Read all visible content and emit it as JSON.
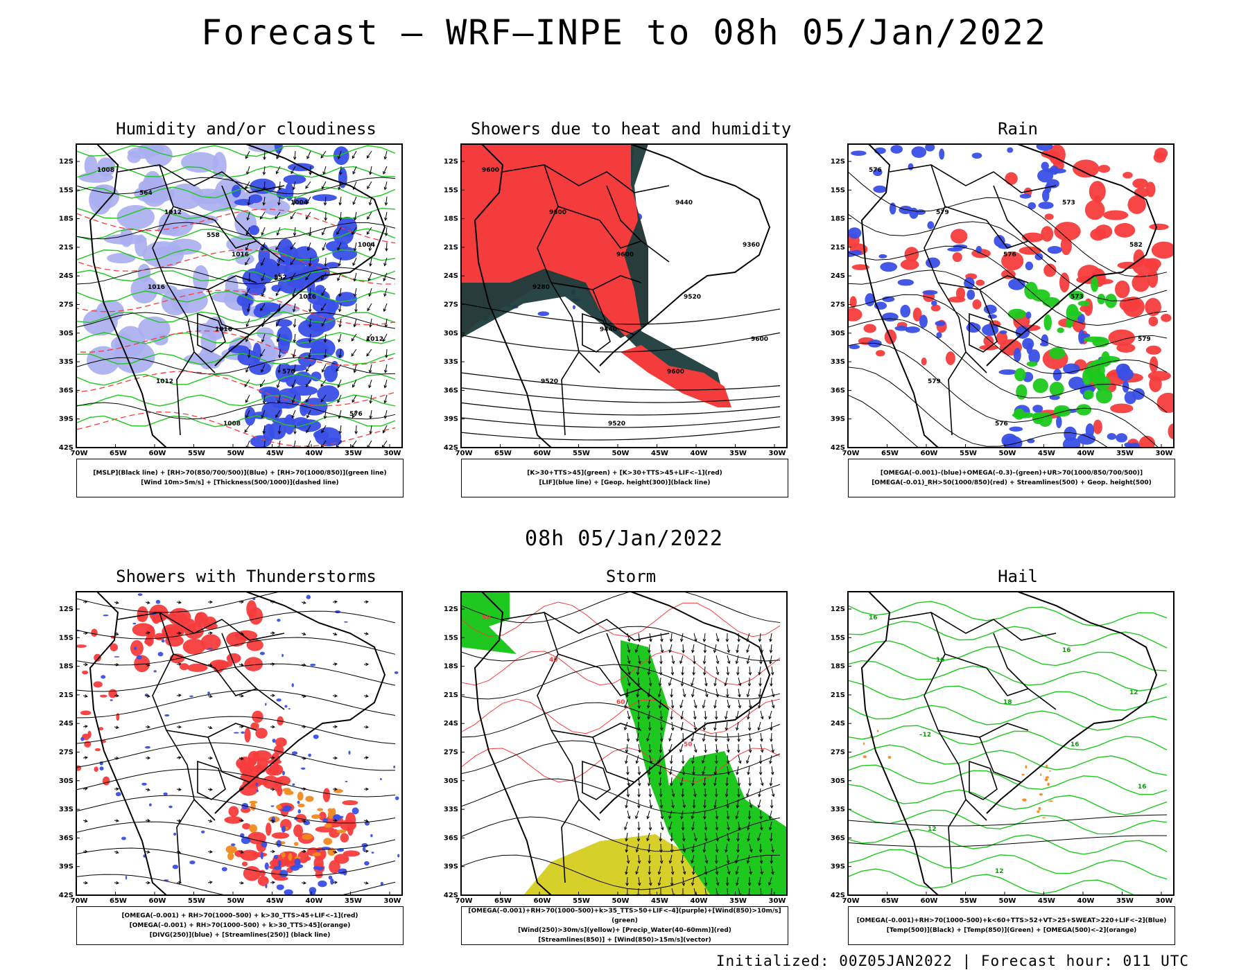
{
  "title": "Forecast — WRF—INPE to 08h 05/Jan/2022",
  "mid_time": "08h 05/Jan/2022",
  "footer": "Initialized: 00Z05JAN2022 | Forecast hour: 011 UTC",
  "lat_labels": [
    "12S",
    "15S",
    "18S",
    "21S",
    "24S",
    "27S",
    "30S",
    "33S",
    "36S",
    "39S",
    "42S"
  ],
  "lon_labels": [
    "70W",
    "65W",
    "60W",
    "55W",
    "50W",
    "45W",
    "40W",
    "35W",
    "30W"
  ],
  "panels": [
    {
      "title": "Humidity and/or cloudiness",
      "legend": [
        "[MSLP](Black line) + [RH>70(850/700/500)](Blue) + [RH>70(1000/850)](green line)",
        "[Wind 10m>5m/s] + [Thickness(500/1000)](dashed line)"
      ],
      "contour_labels": [
        "1008",
        "1012",
        "1016",
        "1016",
        "1012",
        "1012",
        "1008",
        "1004",
        "1004",
        "1016",
        "1016",
        "570",
        "576",
        "564",
        "558",
        "552"
      ]
    },
    {
      "title": "Showers due to heat and humidity",
      "legend": [
        "[K>30+TTS>45](green) + [K>30+TTS>45+LIF<–1](red)",
        "[LIF](blue line) + [Geop. height(300)](black line)"
      ],
      "contour_labels": [
        "9600",
        "9600",
        "9600",
        "9520",
        "9600",
        "9520",
        "9520",
        "9440",
        "9360",
        "9280",
        "9440",
        "9600"
      ]
    },
    {
      "title": "Rain",
      "legend": [
        "[OMEGA(–0.001)–(blue)+OMEGA(–0.3)–(green)+UR>70(1000/850/700/500)]",
        "[OMEGA(–0.01)_RH>50(1000/850)(red) + Streamlines(500) + Geop. height(500)"
      ],
      "contour_labels": [
        "576",
        "579",
        "576",
        "573",
        "579",
        "579",
        "576",
        "573",
        "582"
      ]
    },
    {
      "title": "Showers with Thunderstorms",
      "legend": [
        "[OMEGA(–0.001) + RH>70(1000–500) + k>30_TTS>45+LIF<–1](red)",
        "[OMEGA(–0.001) + RH>70(1000–500) + k>30_TTS>45](orange)",
        "[DIVG(250)](blue) + [Streamlines(250)] (black line)"
      ],
      "contour_labels": []
    },
    {
      "title": "Storm",
      "legend": [
        "[OMEGA(–0.001)+RH>70(1000–500)+k>35_TTS>50+LIF<–4](purple)+[Wind(850)>10m/s](green)",
        "[Wind(250)>30m/s](yellow)+ [Precip_Water(40–60mm)](red)",
        "[Streamlines(850)] + [Wind(850)>15m/s](vector)"
      ],
      "contour_labels": [
        "50",
        "40",
        "60",
        "50"
      ]
    },
    {
      "title": "Hail",
      "legend": [
        "[OMEGA(–0.001)+RH>70(1000–500)+k<60+TTS>52+VT>25+SWEAT>220+LIF<–2](Blue)",
        "[Temp(500)](Black) + [Temp(850)](Green) + [OMEGA(500)<–2](orange)"
      ],
      "contour_labels": [
        "16",
        "16",
        "18",
        "16",
        "16",
        "12",
        "12",
        "16",
        "12",
        "–12"
      ]
    }
  ],
  "colors": {
    "red": "#f53c3c",
    "blue": "#3a4fe6",
    "lightblue": "#a9aef0",
    "green": "#1ec81e",
    "darkgreen": "#1e3c3c",
    "yellow": "#d8d02a",
    "orange": "#f08a20"
  }
}
